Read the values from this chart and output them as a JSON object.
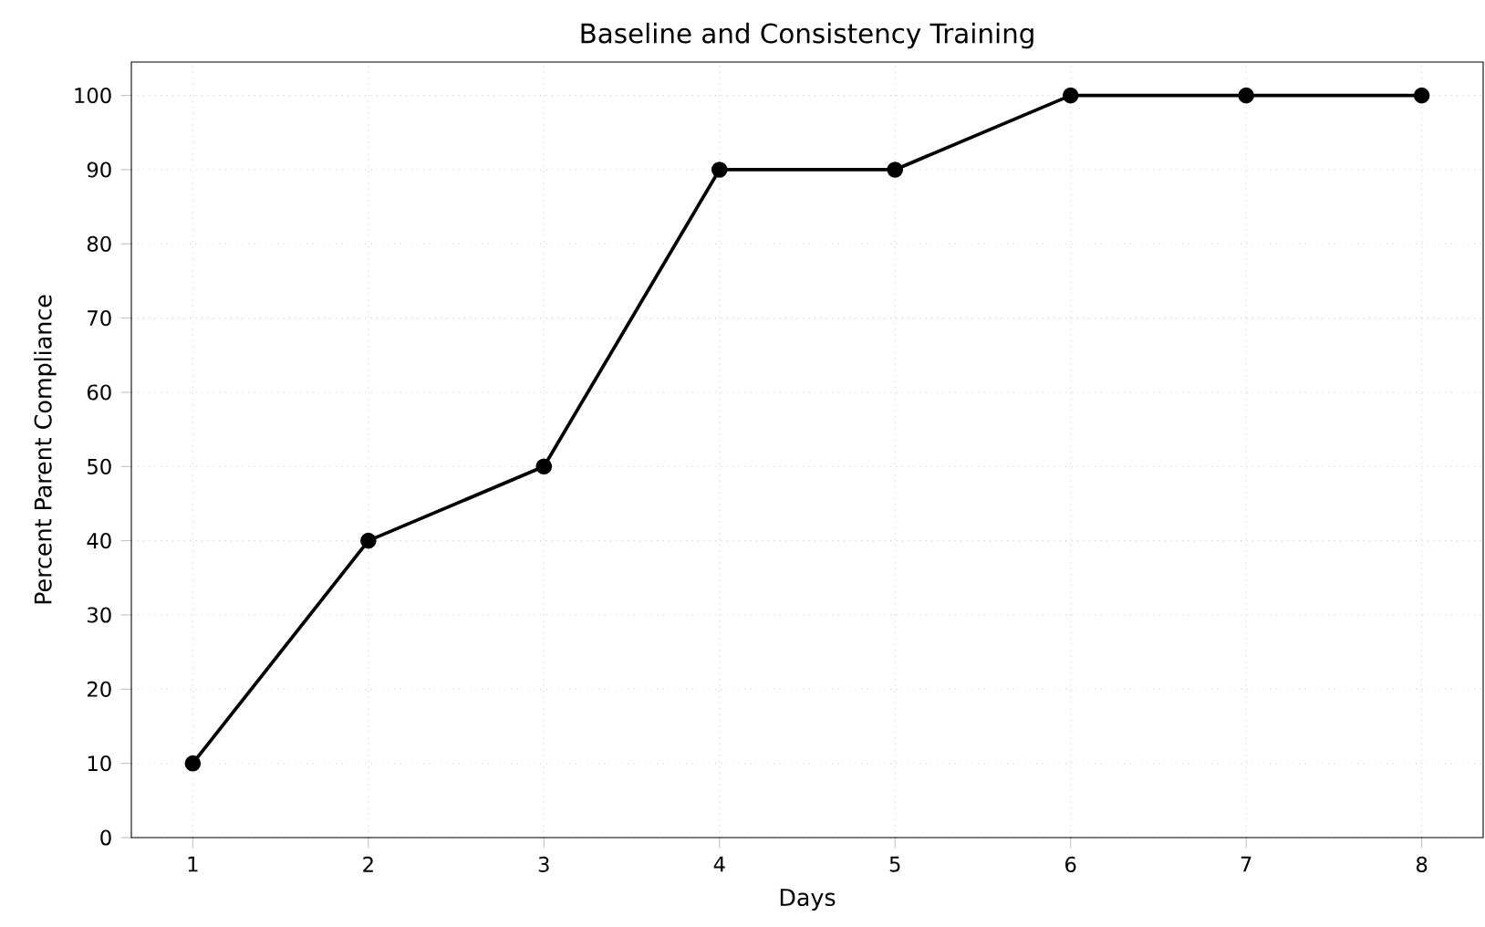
{
  "chart_data": {
    "type": "line",
    "title": "Baseline and Consistency Training",
    "xlabel": "Days",
    "ylabel": "Percent Parent Compliance",
    "x": [
      1,
      2,
      3,
      4,
      5,
      6,
      7,
      8
    ],
    "series": [
      {
        "color": "#000000",
        "values": [
          10,
          40,
          50,
          90,
          90,
          100,
          100,
          100
        ]
      }
    ],
    "xlim": [
      0.65,
      8.35
    ],
    "ylim": [
      0,
      104.5
    ],
    "xticks": [
      1,
      2,
      3,
      4,
      5,
      6,
      7,
      8
    ],
    "yticks": [
      0,
      10,
      20,
      30,
      40,
      50,
      60,
      70,
      80,
      90,
      100
    ],
    "grid": true,
    "marker": "circle",
    "line_style": "solid"
  }
}
